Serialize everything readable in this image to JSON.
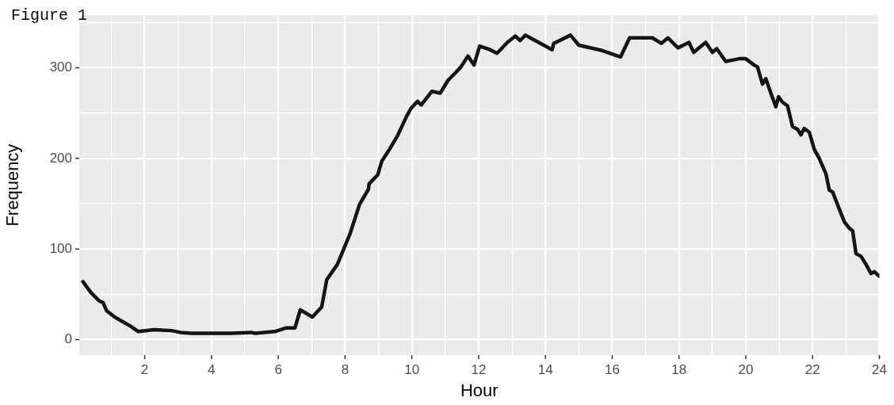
{
  "chart_data": {
    "type": "line",
    "title": "Figure 1",
    "xlabel": "Hour",
    "ylabel": "Frequency",
    "xlim": [
      0.04,
      24
    ],
    "ylim": [
      -17,
      358
    ],
    "xticks": [
      {
        "value": 1,
        "label": null
      },
      2,
      {
        "value": 3,
        "label": null
      },
      4,
      {
        "value": 5,
        "label": null
      },
      6,
      {
        "value": 7,
        "label": null
      },
      8,
      {
        "value": 9,
        "label": null
      },
      10,
      {
        "value": 11,
        "label": null
      },
      12,
      {
        "value": 13,
        "label": null
      },
      14,
      {
        "value": 15,
        "label": null
      },
      16,
      {
        "value": 17,
        "label": null
      },
      18,
      {
        "value": 19,
        "label": null
      },
      20,
      {
        "value": 21,
        "label": null
      },
      22,
      {
        "value": 23,
        "label": null
      },
      24
    ],
    "yticks": [
      0,
      {
        "value": 50,
        "label": null
      },
      100,
      {
        "value": 150,
        "label": null
      },
      200,
      {
        "value": 250,
        "label": null
      },
      300,
      {
        "value": 350,
        "label": null
      }
    ],
    "grid": true,
    "series": [
      {
        "color": "#141414",
        "x": [
          0.15,
          0.39,
          0.63,
          0.75,
          0.86,
          1.1,
          1.57,
          1.81,
          2.28,
          2.8,
          3.07,
          3.4,
          4.58,
          5.2,
          5.3,
          5.9,
          6.24,
          6.5,
          6.66,
          7.02,
          7.3,
          7.45,
          7.77,
          7.96,
          8.15,
          8.43,
          8.7,
          8.72,
          8.98,
          9.1,
          9.33,
          9.57,
          9.85,
          9.97,
          10.17,
          10.28,
          10.6,
          10.85,
          11.08,
          11.32,
          11.47,
          11.68,
          11.86,
          12.03,
          12.34,
          12.55,
          12.86,
          13.1,
          13.24,
          13.4,
          13.6,
          13.95,
          14.2,
          14.25,
          14.75,
          15.0,
          15.7,
          16.25,
          16.52,
          17.2,
          17.47,
          17.67,
          17.97,
          18.3,
          18.44,
          18.8,
          19.0,
          19.13,
          19.4,
          19.8,
          20.0,
          20.25,
          20.35,
          20.5,
          20.6,
          20.75,
          20.9,
          20.98,
          21.1,
          21.25,
          21.4,
          21.55,
          21.65,
          21.75,
          21.9,
          22.05,
          22.2,
          22.4,
          22.5,
          22.6,
          22.8,
          22.95,
          23.1,
          23.2,
          23.3,
          23.45,
          23.6,
          23.75,
          23.85,
          24.0
        ],
        "values": [
          64,
          52,
          43,
          41,
          32,
          25,
          15,
          9,
          11,
          10,
          8,
          7,
          7,
          8,
          7,
          9,
          13,
          13,
          33,
          25,
          36,
          66,
          83,
          100,
          117,
          149,
          166,
          172,
          182,
          197,
          210,
          225,
          247,
          255,
          263,
          259,
          274,
          272,
          286,
          295,
          301,
          313,
          303,
          324,
          320,
          316,
          328,
          335,
          330,
          336,
          332,
          325,
          320,
          327,
          336,
          325,
          319,
          312,
          333,
          333,
          327,
          333,
          322,
          328,
          317,
          328,
          317,
          321,
          307,
          310,
          310,
          303,
          301,
          282,
          288,
          272,
          257,
          268,
          262,
          258,
          235,
          232,
          226,
          233,
          229,
          210,
          200,
          183,
          165,
          163,
          144,
          130,
          123,
          120,
          95,
          92,
          83,
          73,
          75,
          70
        ]
      }
    ]
  }
}
